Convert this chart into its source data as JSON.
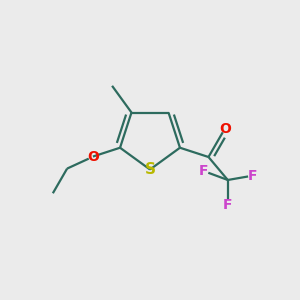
{
  "bg_color": "#ebebeb",
  "bond_color": "#2d6b5e",
  "sulfur_color": "#b8b800",
  "oxygen_color": "#ee1100",
  "fluorine_color": "#cc44cc",
  "bond_width": 1.6,
  "fig_size": [
    3.0,
    3.0
  ],
  "dpi": 100,
  "xlim": [
    0,
    10
  ],
  "ylim": [
    0,
    10
  ]
}
